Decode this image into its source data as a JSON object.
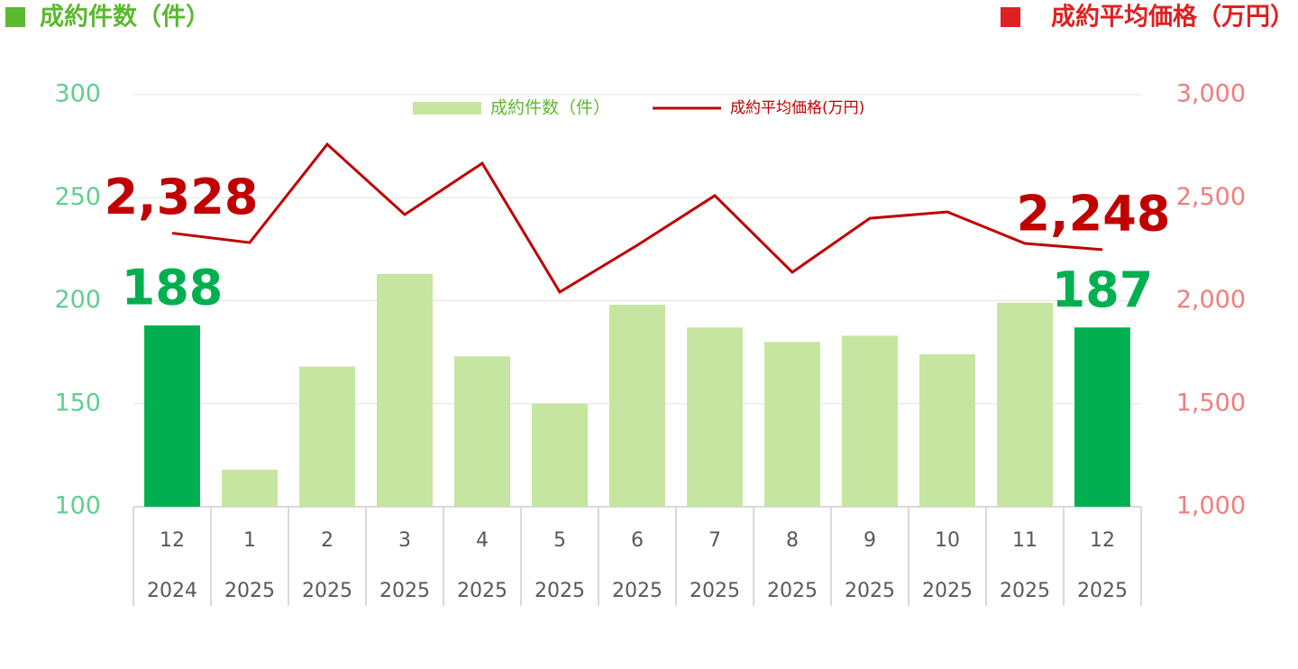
{
  "chart_data": {
    "type": "bar_line",
    "y_label": "成約件数（件）",
    "y2_label": "成約平均価格（万円）",
    "categories": [
      [
        "12",
        "2024"
      ],
      [
        "1",
        "2025"
      ],
      [
        "2",
        "2025"
      ],
      [
        "3",
        "2025"
      ],
      [
        "4",
        "2025"
      ],
      [
        "5",
        "2025"
      ],
      [
        "6",
        "2025"
      ],
      [
        "7",
        "2025"
      ],
      [
        "8",
        "2025"
      ],
      [
        "9",
        "2025"
      ],
      [
        "10",
        "2025"
      ],
      [
        "11",
        "2025"
      ],
      [
        "12",
        "2025"
      ]
    ],
    "series": [
      {
        "name": "成約件数（件）",
        "type": "bar",
        "color": "#c5e5a0",
        "colors": [
          "#00b050",
          "#c5e5a0",
          "#c5e5a0",
          "#c5e5a0",
          "#c5e5a0",
          "#c5e5a0",
          "#c5e5a0",
          "#c5e5a0",
          "#c5e5a0",
          "#c5e5a0",
          "#c5e5a0",
          "#c5e5a0",
          "#00b050"
        ],
        "values": [
          188,
          118,
          168,
          213,
          173,
          150,
          198,
          187,
          180,
          183,
          174,
          199,
          187
        ],
        "value_labels": [
          "188",
          null,
          null,
          null,
          null,
          null,
          null,
          null,
          null,
          null,
          null,
          null,
          "187"
        ]
      },
      {
        "name": "成約平均価格(万円)",
        "type": "line",
        "axis": "y2",
        "color": "#c00000",
        "values": [
          2328,
          2282,
          2759,
          2418,
          2667,
          2042,
          2269,
          2510,
          2138,
          2400,
          2431,
          2278,
          2248
        ],
        "value_labels": [
          "2,328",
          null,
          null,
          null,
          null,
          null,
          null,
          null,
          null,
          null,
          null,
          null,
          "2,248"
        ]
      }
    ],
    "ylim": [
      100,
      300
    ],
    "yticks": [
      100,
      150,
      200,
      250,
      300
    ],
    "y_color": "#5fcf8f",
    "y2lim": [
      1000,
      3000
    ],
    "y2ticks": [
      {
        "value": 1000,
        "label": "1,000"
      },
      {
        "value": 1500,
        "label": "1,500"
      },
      {
        "value": 2000,
        "label": "2,000"
      },
      {
        "value": 2500,
        "label": "2,500"
      },
      {
        "value": 3000,
        "label": "3,000"
      }
    ],
    "y2_color": "#f47c7c",
    "grid": true,
    "legend": "top"
  }
}
